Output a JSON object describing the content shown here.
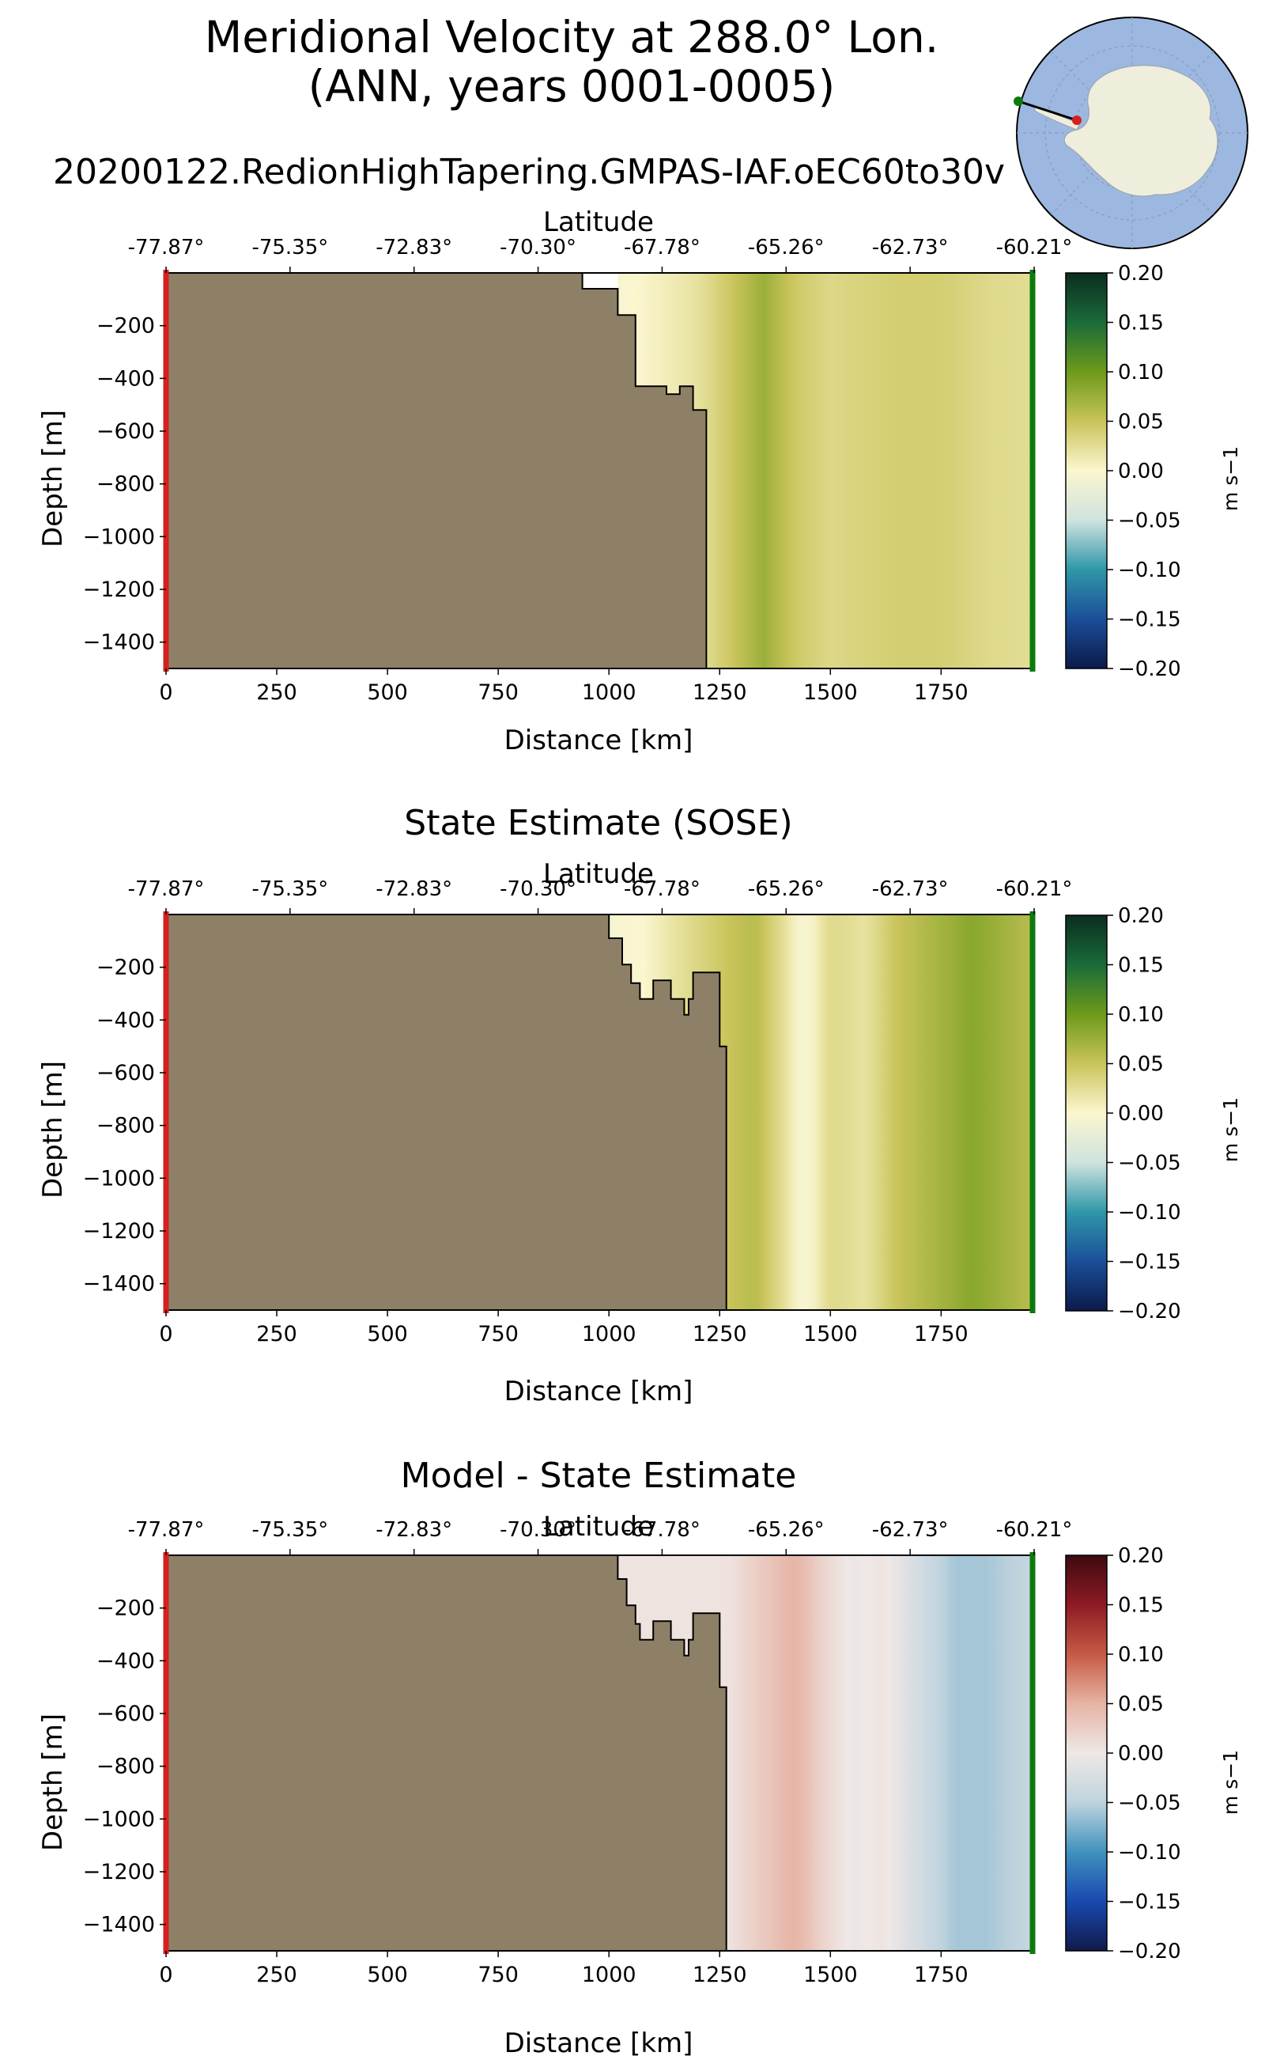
{
  "figure": {
    "title_line1": "Meridional Velocity at 288.0° Lon.",
    "title_line2": "(ANN, years 0001-0005)"
  },
  "colors": {
    "land": "#8e8066",
    "land_outline": "#000000",
    "start_marker": "#d42020",
    "end_marker": "#0c7a0c",
    "inset_ocean": "#9db8e0",
    "inset_land": "#efeddc"
  },
  "inset_map": {
    "name": "antarctic-locator-map",
    "projection": "south-polar-stereographic"
  },
  "chart_data": [
    {
      "type": "heatmap",
      "title": "20200122.RedionHighTapering.GMPAS-IAF.oEC60to30v",
      "xlabel": "Distance [km]",
      "ylabel": "Depth [m]",
      "top_xlabel": "Latitude",
      "xlim": [
        0,
        1960
      ],
      "ylim": [
        -1500,
        0
      ],
      "x_ticks": [
        0,
        250,
        500,
        750,
        1000,
        1250,
        1500,
        1750
      ],
      "y_ticks": [
        -200,
        -400,
        -600,
        -800,
        -1000,
        -1200,
        -1400
      ],
      "lat_ticks": [
        "-77.87°",
        "-75.35°",
        "-72.83°",
        "-70.30°",
        "-67.78°",
        "-65.26°",
        "-62.73°",
        "-60.21°"
      ],
      "colorbar": {
        "label": "m s−1",
        "range": [
          -0.2,
          0.2
        ],
        "ticks": [
          "0.20",
          "0.15",
          "0.10",
          "0.05",
          "0.00",
          "−0.05",
          "−0.10",
          "−0.15",
          "−0.20"
        ],
        "colormap": "BrBG-like: dark green (+) to cream (0) to dark blue (−)",
        "stops": [
          "#0b2d1f",
          "#1a6b3a",
          "#6d9a19",
          "#c9c45a",
          "#fbf6cf",
          "#cfe3df",
          "#2f97a8",
          "#1b4f99",
          "#0b1a4a"
        ]
      },
      "bathymetry_profile": {
        "x_km": [
          0,
          940,
          940,
          1020,
          1020,
          1060,
          1060,
          1130,
          1130,
          1160,
          1160,
          1190,
          1190,
          1220,
          1220
        ],
        "depth_m": [
          0,
          0,
          -60,
          -60,
          -160,
          -160,
          -430,
          -430,
          -460,
          -460,
          -430,
          -430,
          -520,
          -520,
          -1500
        ]
      },
      "velocity_profile": {
        "x_km": [
          1020,
          1100,
          1200,
          1270,
          1350,
          1420,
          1500,
          1560,
          1650,
          1750,
          1850,
          1950
        ],
        "v_ms": [
          -0.005,
          0.005,
          0.02,
          0.045,
          0.075,
          0.045,
          0.03,
          0.035,
          0.04,
          0.04,
          0.03,
          0.025
        ]
      }
    },
    {
      "type": "heatmap",
      "title": "State Estimate (SOSE)",
      "xlabel": "Distance [km]",
      "ylabel": "Depth [m]",
      "top_xlabel": "Latitude",
      "xlim": [
        0,
        1960
      ],
      "ylim": [
        -1500,
        0
      ],
      "x_ticks": [
        0,
        250,
        500,
        750,
        1000,
        1250,
        1500,
        1750
      ],
      "y_ticks": [
        -200,
        -400,
        -600,
        -800,
        -1000,
        -1200,
        -1400
      ],
      "lat_ticks": [
        "-77.87°",
        "-75.35°",
        "-72.83°",
        "-70.30°",
        "-67.78°",
        "-65.26°",
        "-62.73°",
        "-60.21°"
      ],
      "colorbar": {
        "label": "m s−1",
        "range": [
          -0.2,
          0.2
        ],
        "ticks": [
          "0.20",
          "0.15",
          "0.10",
          "0.05",
          "0.00",
          "−0.05",
          "−0.10",
          "−0.15",
          "−0.20"
        ],
        "colormap": "BrBG-like: dark green (+) to cream (0) to dark blue (−)",
        "stops": [
          "#0b2d1f",
          "#1a6b3a",
          "#6d9a19",
          "#c9c45a",
          "#fbf6cf",
          "#cfe3df",
          "#2f97a8",
          "#1b4f99",
          "#0b1a4a"
        ]
      },
      "bathymetry_profile": {
        "x_km": [
          0,
          1000,
          1000,
          1030,
          1030,
          1050,
          1050,
          1070,
          1070,
          1100,
          1100,
          1140,
          1140,
          1170,
          1170,
          1180,
          1180,
          1190,
          1190,
          1250,
          1250,
          1265,
          1265
        ],
        "depth_m": [
          0,
          0,
          -90,
          -90,
          -190,
          -190,
          -260,
          -260,
          -320,
          -320,
          -250,
          -250,
          -320,
          -320,
          -380,
          -380,
          -320,
          -320,
          -220,
          -220,
          -500,
          -500,
          -1500
        ]
      },
      "velocity_profile": {
        "x_km": [
          1000,
          1080,
          1150,
          1270,
          1330,
          1400,
          1440,
          1500,
          1580,
          1650,
          1750,
          1820,
          1950
        ],
        "v_ms": [
          -0.005,
          0.0,
          0.02,
          0.05,
          0.06,
          0.02,
          -0.01,
          0.03,
          0.02,
          0.05,
          0.07,
          0.085,
          0.06
        ]
      }
    },
    {
      "type": "heatmap",
      "title": "Model - State Estimate",
      "xlabel": "Distance [km]",
      "ylabel": "Depth [m]",
      "top_xlabel": "Latitude",
      "xlim": [
        0,
        1960
      ],
      "ylim": [
        -1500,
        0
      ],
      "x_ticks": [
        0,
        250,
        500,
        750,
        1000,
        1250,
        1500,
        1750
      ],
      "y_ticks": [
        -200,
        -400,
        -600,
        -800,
        -1000,
        -1200,
        -1400
      ],
      "lat_ticks": [
        "-77.87°",
        "-75.35°",
        "-72.83°",
        "-70.30°",
        "-67.78°",
        "-65.26°",
        "-62.73°",
        "-60.21°"
      ],
      "colorbar": {
        "label": "m s−1",
        "range": [
          -0.2,
          0.2
        ],
        "ticks": [
          "0.20",
          "0.15",
          "0.10",
          "0.05",
          "0.00",
          "−0.05",
          "−0.10",
          "−0.15",
          "−0.20"
        ],
        "colormap": "balance: dark red (+) to light grey (0) to dark blue (−)",
        "stops": [
          "#3d0a11",
          "#8e1a24",
          "#c65a44",
          "#e6b3a4",
          "#efe8e6",
          "#bfd3de",
          "#3f92bd",
          "#1a49b0",
          "#101a4a"
        ]
      },
      "bathymetry_profile": {
        "x_km": [
          0,
          1020,
          1020,
          1040,
          1040,
          1060,
          1060,
          1070,
          1070,
          1100,
          1100,
          1140,
          1140,
          1170,
          1170,
          1180,
          1180,
          1190,
          1190,
          1250,
          1250,
          1265,
          1265
        ],
        "depth_m": [
          0,
          0,
          -90,
          -90,
          -190,
          -190,
          -260,
          -260,
          -320,
          -320,
          -250,
          -250,
          -320,
          -320,
          -380,
          -380,
          -320,
          -320,
          -220,
          -220,
          -500,
          -500,
          -1500
        ]
      },
      "velocity_profile": {
        "x_km": [
          1020,
          1150,
          1270,
          1350,
          1420,
          1480,
          1550,
          1620,
          1700,
          1780,
          1850,
          1950
        ],
        "v_ms": [
          0.005,
          0.005,
          0.005,
          0.03,
          0.05,
          0.02,
          -0.005,
          0.005,
          -0.03,
          -0.06,
          -0.06,
          -0.045
        ]
      }
    }
  ]
}
